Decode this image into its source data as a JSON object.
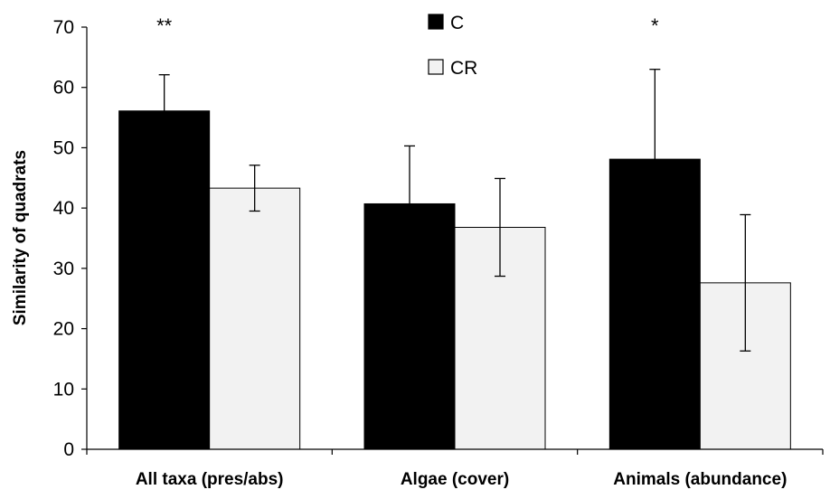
{
  "chart_data": {
    "type": "bar",
    "title": "",
    "xlabel": "",
    "ylabel": "Similarity of quadrats",
    "ylim": [
      0,
      70
    ],
    "yticks": [
      0,
      10,
      20,
      30,
      40,
      50,
      60,
      70
    ],
    "grid": false,
    "legend_position": "top-center",
    "categories": [
      "All taxa (pres/abs)",
      "Algae (cover)",
      "Animals (abundance)"
    ],
    "significance": [
      "**",
      "",
      "*"
    ],
    "series": [
      {
        "name": "C",
        "color": "#000000",
        "values": [
          56.1,
          40.7,
          48.1
        ],
        "errors": [
          6.0,
          9.6,
          14.9
        ]
      },
      {
        "name": "CR",
        "color": "#f2f2f2",
        "values": [
          43.3,
          36.8,
          27.6
        ],
        "errors": [
          3.8,
          8.1,
          11.3
        ]
      }
    ]
  }
}
